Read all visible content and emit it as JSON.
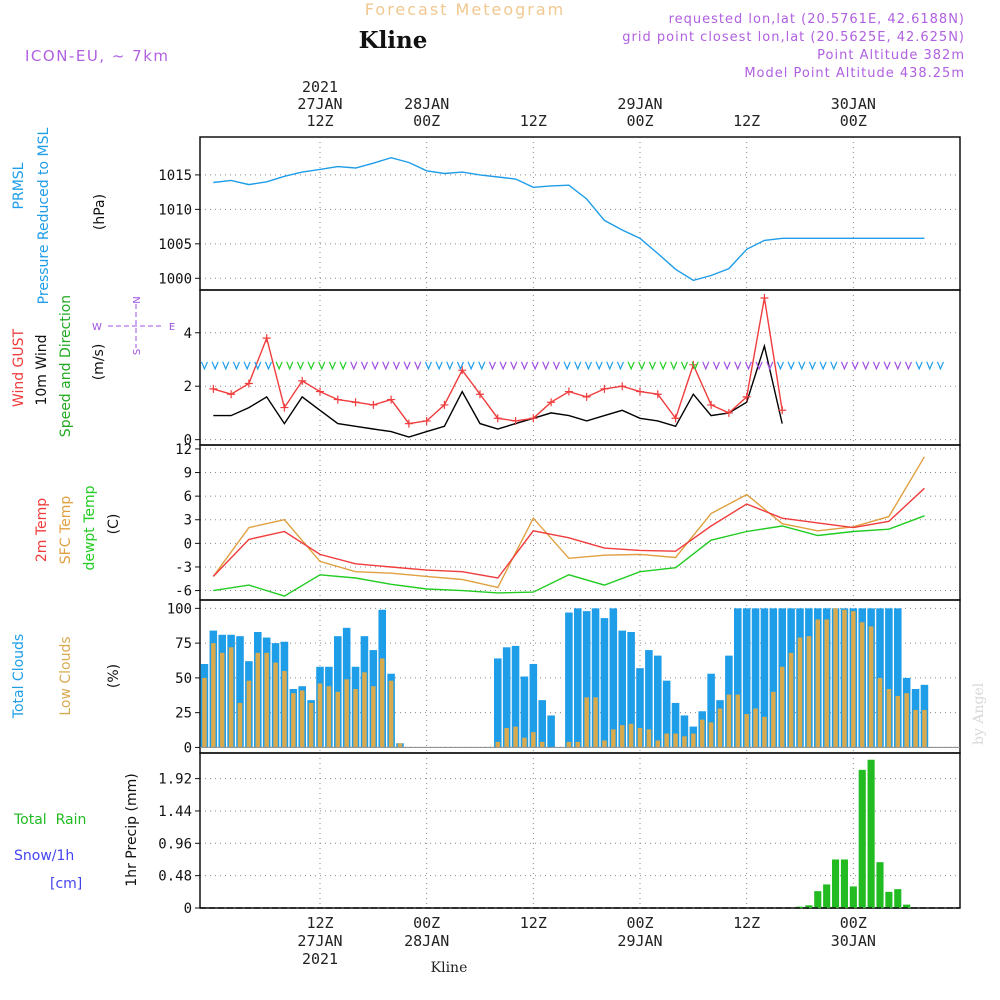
{
  "header": {
    "title": "Forecast Meteogram",
    "location": "Kline",
    "model": "ICON-EU, ~ 7km",
    "requested": "requested lon,lat (20.5761E, 42.6188N)",
    "closest": "grid point closest lon,lat (20.5625E, 42.625N)",
    "point_altitude": "Point Altitude 382m",
    "model_altitude": "Model Point Altitude 438.25m"
  },
  "watermark": "by Angel",
  "footer_location": "Kline",
  "time_axis": {
    "ticks": [
      {
        "top": "12Z",
        "bottom": "27JAN",
        "extra": "2021",
        "t": 12
      },
      {
        "top": "00Z",
        "bottom": "28JAN",
        "extra": "",
        "t": 24
      },
      {
        "top": "12Z",
        "bottom": "",
        "extra": "",
        "t": 36
      },
      {
        "top": "00Z",
        "bottom": "29JAN",
        "extra": "",
        "t": 48
      },
      {
        "top": "12Z",
        "bottom": "",
        "extra": "",
        "t": 60
      },
      {
        "top": "00Z",
        "bottom": "30JAN",
        "extra": "",
        "t": 72
      }
    ]
  },
  "colors": {
    "pressure": "#1e9de8",
    "wind10": "#000000",
    "gust": "#f03c3c",
    "t2m": "#f03c3c",
    "sfc": "#e0a040",
    "dew": "#22cc22",
    "total_clouds": "#1e9de8",
    "low_clouds": "#d8aa50",
    "rain": "#22bb22",
    "purple": "#a050e0"
  },
  "chart_data": [
    {
      "type": "line",
      "title": "Pressure",
      "ylabel_lines": [
        "PRMSL",
        "Pressure Reduced to MSL"
      ],
      "unit": "(hPa)",
      "yticks": [
        1000,
        1005,
        1010,
        1015
      ],
      "ylim": [
        998.3,
        1020.5
      ],
      "x": [
        0,
        2,
        4,
        6,
        8,
        10,
        12,
        14,
        16,
        18,
        20,
        22,
        24,
        26,
        28,
        30,
        32,
        34,
        36,
        38,
        40,
        42,
        44,
        46,
        48,
        50,
        52,
        54,
        56,
        58,
        60,
        62,
        64,
        66,
        68,
        70,
        72,
        74,
        76,
        78,
        80
      ],
      "series": [
        {
          "name": "PRMSL",
          "values": [
            1013.9,
            1014.2,
            1013.6,
            1014.0,
            1014.8,
            1015.4,
            1015.8,
            1016.2,
            1016.0,
            1016.7,
            1017.5,
            1016.8,
            1015.6,
            1015.2,
            1015.4,
            1015.0,
            1014.7,
            1014.4,
            1013.2,
            1013.4,
            1013.5,
            1011.5,
            1008.4,
            1007.0,
            1005.8,
            1003.6,
            1001.3,
            999.7,
            1000.4,
            1001.4,
            1004.2,
            1005.5,
            1005.8,
            1005.8,
            1005.8,
            1005.8,
            1005.8,
            1005.8,
            1005.8,
            1005.8,
            1005.8
          ]
        }
      ],
      "grid": true
    },
    {
      "type": "line",
      "title": "Wind",
      "ylabel_lines": [
        "Wind GUST",
        "10m Wind",
        "Speed and Direction"
      ],
      "unit": "(m/s)",
      "compass": {
        "n": "N",
        "s": "S",
        "w": "W",
        "e": "E"
      },
      "yticks": [
        0,
        2,
        4
      ],
      "ylim": [
        -0.2,
        5.6
      ],
      "x": [
        0,
        2,
        4,
        6,
        8,
        10,
        12,
        14,
        16,
        18,
        20,
        22,
        24,
        26,
        28,
        30,
        32,
        34,
        36,
        38,
        40,
        42,
        44,
        46,
        48,
        50,
        52,
        54,
        56,
        58,
        60,
        62,
        64
      ],
      "series": [
        {
          "name": "Wind GUST",
          "values": [
            1.9,
            1.7,
            2.1,
            3.8,
            1.2,
            2.2,
            1.8,
            1.5,
            1.4,
            1.3,
            1.5,
            0.6,
            0.7,
            1.3,
            2.6,
            1.7,
            0.8,
            0.7,
            0.8,
            1.4,
            1.8,
            1.6,
            1.9,
            2.0,
            1.8,
            1.7,
            0.8,
            2.8,
            1.3,
            1.0,
            1.6,
            5.3,
            1.1
          ]
        },
        {
          "name": "10m Wind",
          "values": [
            0.9,
            0.9,
            1.2,
            1.6,
            0.6,
            1.6,
            1.1,
            0.6,
            0.5,
            0.4,
            0.3,
            0.1,
            0.3,
            0.5,
            1.8,
            0.6,
            0.4,
            0.6,
            0.8,
            1.0,
            0.9,
            0.7,
            0.9,
            1.1,
            0.8,
            0.7,
            0.5,
            1.7,
            0.9,
            1.0,
            1.4,
            3.5,
            0.6
          ]
        }
      ],
      "grid": true
    },
    {
      "type": "line",
      "title": "Temperature",
      "ylabel_lines": [
        "2m Temp",
        "SFC Temp",
        "dewpt Temp"
      ],
      "unit": "(C)",
      "yticks": [
        -6,
        -3,
        0,
        3,
        6,
        9,
        12
      ],
      "ylim": [
        -7.2,
        12.5
      ],
      "x": [
        0,
        4,
        8,
        12,
        16,
        20,
        24,
        28,
        32,
        36,
        40,
        44,
        48,
        52,
        56,
        60,
        64,
        68,
        72,
        76,
        80
      ],
      "series": [
        {
          "name": "2m Temp",
          "values": [
            -4.2,
            0.5,
            1.5,
            -1.4,
            -2.6,
            -3.0,
            -3.4,
            -3.6,
            -4.4,
            1.6,
            0.7,
            -0.6,
            -0.9,
            -1.0,
            2.2,
            5.0,
            3.2,
            2.6,
            2.0,
            2.8,
            7.0
          ]
        },
        {
          "name": "SFC Temp",
          "values": [
            -4.2,
            2.0,
            3.0,
            -2.3,
            -3.6,
            -3.8,
            -4.2,
            -4.6,
            -5.6,
            3.2,
            -1.9,
            -1.5,
            -1.4,
            -1.8,
            3.8,
            6.2,
            2.5,
            1.6,
            2.1,
            3.4,
            11.0
          ]
        },
        {
          "name": "dewpt Temp",
          "values": [
            -6.0,
            -5.3,
            -6.7,
            -4.0,
            -4.4,
            -5.2,
            -5.8,
            -6.0,
            -6.3,
            -6.2,
            -4.0,
            -5.3,
            -3.6,
            -3.1,
            0.4,
            1.5,
            2.2,
            1.0,
            1.5,
            1.8,
            3.5
          ]
        }
      ],
      "grid": true
    },
    {
      "type": "bar",
      "title": "Clouds",
      "ylabel_lines": [
        "Total Clouds",
        "Low Clouds"
      ],
      "unit": "(%)",
      "yticks": [
        0,
        25,
        50,
        75,
        100
      ],
      "ylim": [
        -4,
        106
      ],
      "x_start": -1,
      "series": [
        {
          "name": "Total Clouds",
          "values": [
            60,
            84,
            81,
            81,
            80,
            62,
            83,
            79,
            75,
            76,
            42,
            44,
            34,
            58,
            58,
            80,
            86,
            58,
            80,
            70,
            99,
            53,
            3,
            0,
            0,
            0,
            0,
            0,
            0,
            0,
            0,
            0,
            0,
            64,
            72,
            73,
            51,
            60,
            34,
            23,
            0,
            97,
            100,
            98,
            100,
            93,
            100,
            84,
            83,
            57,
            70,
            66,
            48,
            32,
            23,
            15,
            26,
            53,
            34,
            66,
            100,
            100,
            100,
            100,
            100,
            100,
            100,
            100,
            100,
            100,
            100,
            100,
            100,
            100,
            100,
            100,
            100,
            100,
            100,
            50,
            42,
            45
          ]
        },
        {
          "name": "Low Clouds",
          "values": [
            50,
            75,
            68,
            72,
            32,
            48,
            68,
            68,
            61,
            55,
            39,
            41,
            32,
            46,
            44,
            40,
            49,
            42,
            54,
            44,
            64,
            48,
            3,
            0,
            0,
            0,
            0,
            0,
            0,
            0,
            0,
            0,
            0,
            4,
            14,
            15,
            7,
            11,
            4,
            0,
            0,
            4,
            4,
            36,
            36,
            5,
            13,
            16,
            17,
            14,
            13,
            5,
            10,
            10,
            8,
            10,
            20,
            18,
            28,
            38,
            38,
            24,
            28,
            22,
            40,
            58,
            68,
            79,
            80,
            92,
            92,
            100,
            99,
            98,
            90,
            87,
            50,
            42,
            37,
            39,
            27,
            27
          ]
        }
      ],
      "grid": true
    },
    {
      "type": "bar",
      "title": "Precipitation",
      "ylabel_lines": [
        "1hr Precip (mm)"
      ],
      "side_legend": [
        "Total  Rain",
        "Snow/1h",
        "[cm]"
      ],
      "yticks": [
        0,
        0.48,
        0.96,
        1.44,
        1.92
      ],
      "ylim": [
        0,
        2.3
      ],
      "x_start": 66,
      "series": [
        {
          "name": "Total Rain",
          "values": [
            0.02,
            0.04,
            0.25,
            0.35,
            0.72,
            0.72,
            0.32,
            2.05,
            2.2,
            0.68,
            0.24,
            0.28,
            0.05
          ]
        }
      ],
      "grid": true
    }
  ]
}
